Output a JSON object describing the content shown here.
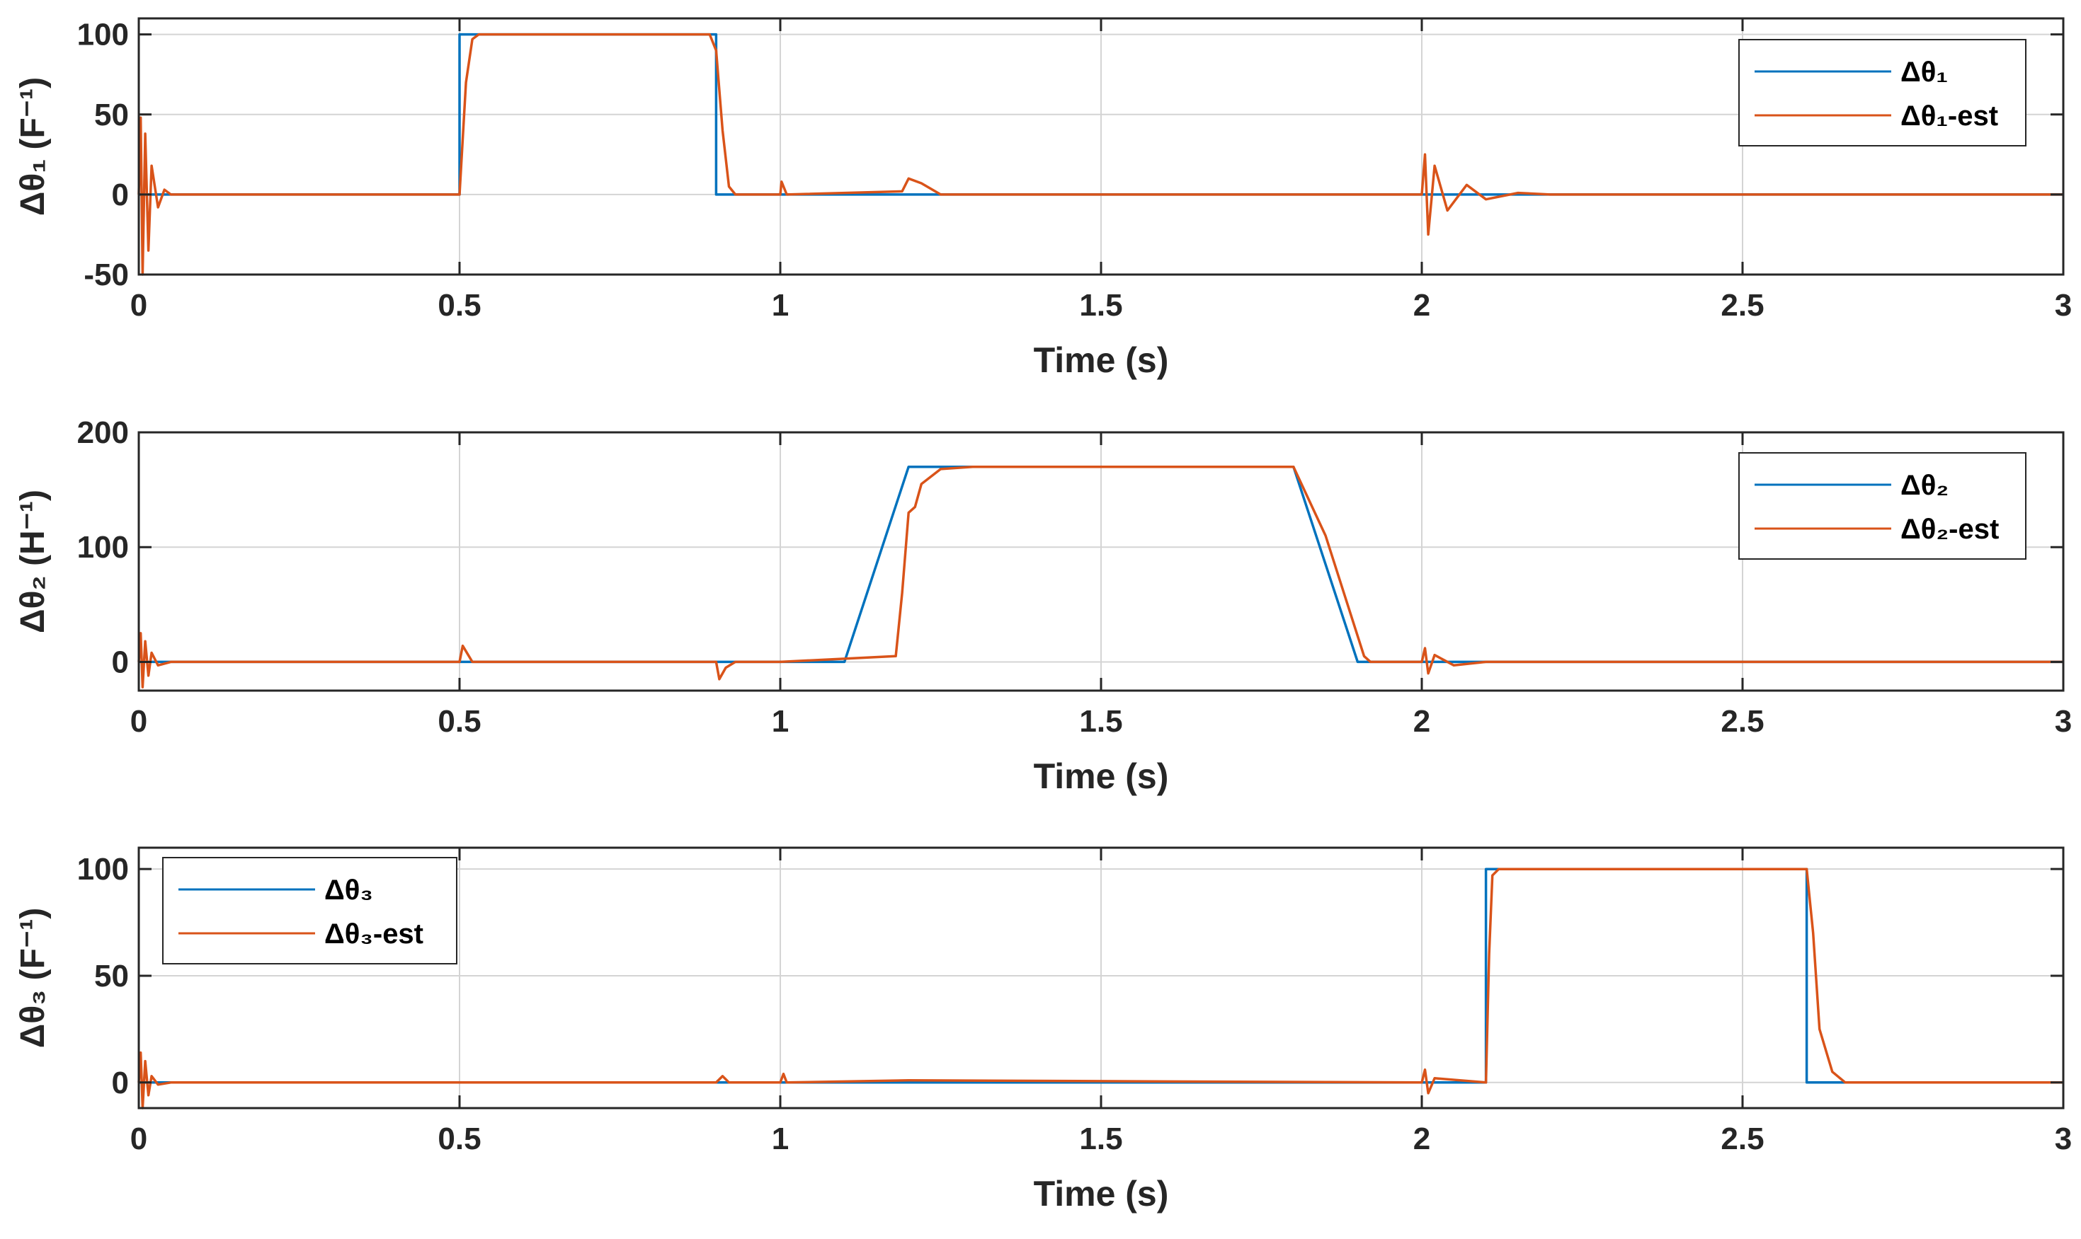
{
  "chart_data": [
    {
      "type": "line",
      "xlabel": "Time (s)",
      "ylabel": "Δθ₁ (F⁻¹)",
      "xlim": [
        0,
        3
      ],
      "ylim": [
        -50,
        110
      ],
      "xticks": [
        "0",
        "0.5",
        "1",
        "1.5",
        "2",
        "2.5",
        "3"
      ],
      "yticks": [
        "-50",
        "0",
        "50",
        "100"
      ],
      "grid": true,
      "legend_position": "top-right",
      "series": [
        {
          "name": "Δθ₁",
          "color": "#0072BD",
          "x": [
            0,
            0.5,
            0.5,
            0.9,
            0.9,
            3
          ],
          "y": [
            0,
            0,
            100,
            100,
            0,
            0
          ]
        },
        {
          "name": "Δθ₁-est",
          "color": "#D95319",
          "x": [
            0,
            0.003,
            0.006,
            0.01,
            0.015,
            0.02,
            0.03,
            0.04,
            0.05,
            0.5,
            0.51,
            0.52,
            0.53,
            0.89,
            0.9,
            0.91,
            0.92,
            0.93,
            1.0,
            1.002,
            1.01,
            1.19,
            1.2,
            1.22,
            1.25,
            2.0,
            2.005,
            2.01,
            2.02,
            2.04,
            2.07,
            2.1,
            2.15,
            2.2,
            3.0
          ],
          "y": [
            0,
            48,
            -50,
            38,
            -35,
            18,
            -8,
            3,
            0,
            0,
            70,
            97,
            100,
            100,
            90,
            40,
            5,
            0,
            0,
            8,
            0,
            2,
            10,
            7,
            0,
            0,
            25,
            -25,
            18,
            -10,
            6,
            -3,
            1,
            0,
            0
          ]
        }
      ]
    },
    {
      "type": "line",
      "xlabel": "Time (s)",
      "ylabel": "Δθ₂  (H⁻¹)",
      "xlim": [
        0,
        3
      ],
      "ylim": [
        -25,
        200
      ],
      "xticks": [
        "0",
        "0.5",
        "1",
        "1.5",
        "2",
        "2.5",
        "3"
      ],
      "yticks": [
        "0",
        "100",
        "200"
      ],
      "grid": true,
      "legend_position": "top-right",
      "series": [
        {
          "name": "Δθ₂",
          "color": "#0072BD",
          "x": [
            0,
            1.1,
            1.2,
            1.8,
            1.9,
            3
          ],
          "y": [
            0,
            0,
            170,
            170,
            0,
            0
          ]
        },
        {
          "name": "Δθ₂-est",
          "color": "#D95319",
          "x": [
            0,
            0.003,
            0.006,
            0.01,
            0.015,
            0.02,
            0.03,
            0.05,
            0.5,
            0.505,
            0.52,
            0.9,
            0.905,
            0.915,
            0.93,
            1.0,
            1.18,
            1.19,
            1.2,
            1.21,
            1.22,
            1.25,
            1.3,
            1.8,
            1.85,
            1.91,
            1.92,
            2.0,
            2.005,
            2.01,
            2.02,
            2.05,
            2.1,
            3.0
          ],
          "y": [
            0,
            25,
            -22,
            18,
            -12,
            8,
            -3,
            0,
            0,
            14,
            0,
            0,
            -15,
            -5,
            0,
            0,
            5,
            60,
            130,
            135,
            155,
            168,
            170,
            170,
            110,
            5,
            0,
            0,
            12,
            -10,
            6,
            -3,
            0,
            0
          ]
        }
      ]
    },
    {
      "type": "line",
      "xlabel": "Time (s)",
      "ylabel": "Δθ₃ (F⁻¹)",
      "xlim": [
        0,
        3
      ],
      "ylim": [
        -12,
        110
      ],
      "xticks": [
        "0",
        "0.5",
        "1",
        "1.5",
        "2",
        "2.5",
        "3"
      ],
      "yticks": [
        "0",
        "50",
        "100"
      ],
      "grid": true,
      "legend_position": "top-left",
      "series": [
        {
          "name": "Δθ₃",
          "color": "#0072BD",
          "x": [
            0,
            2.1,
            2.1,
            2.6,
            2.6,
            3
          ],
          "y": [
            0,
            0,
            100,
            100,
            0,
            0
          ]
        },
        {
          "name": "Δθ₃-est",
          "color": "#D95319",
          "x": [
            0,
            0.003,
            0.006,
            0.01,
            0.015,
            0.02,
            0.03,
            0.05,
            0.9,
            0.91,
            0.92,
            1.0,
            1.005,
            1.01,
            1.2,
            2.0,
            2.005,
            2.01,
            2.02,
            2.1,
            2.105,
            2.11,
            2.12,
            2.6,
            2.61,
            2.62,
            2.64,
            2.66,
            3.0
          ],
          "y": [
            0,
            14,
            -12,
            10,
            -6,
            3,
            -1,
            0,
            0,
            3,
            0,
            0,
            4,
            0,
            1,
            0,
            6,
            -5,
            2,
            0,
            60,
            97,
            100,
            100,
            70,
            25,
            5,
            0,
            0
          ]
        }
      ]
    }
  ]
}
